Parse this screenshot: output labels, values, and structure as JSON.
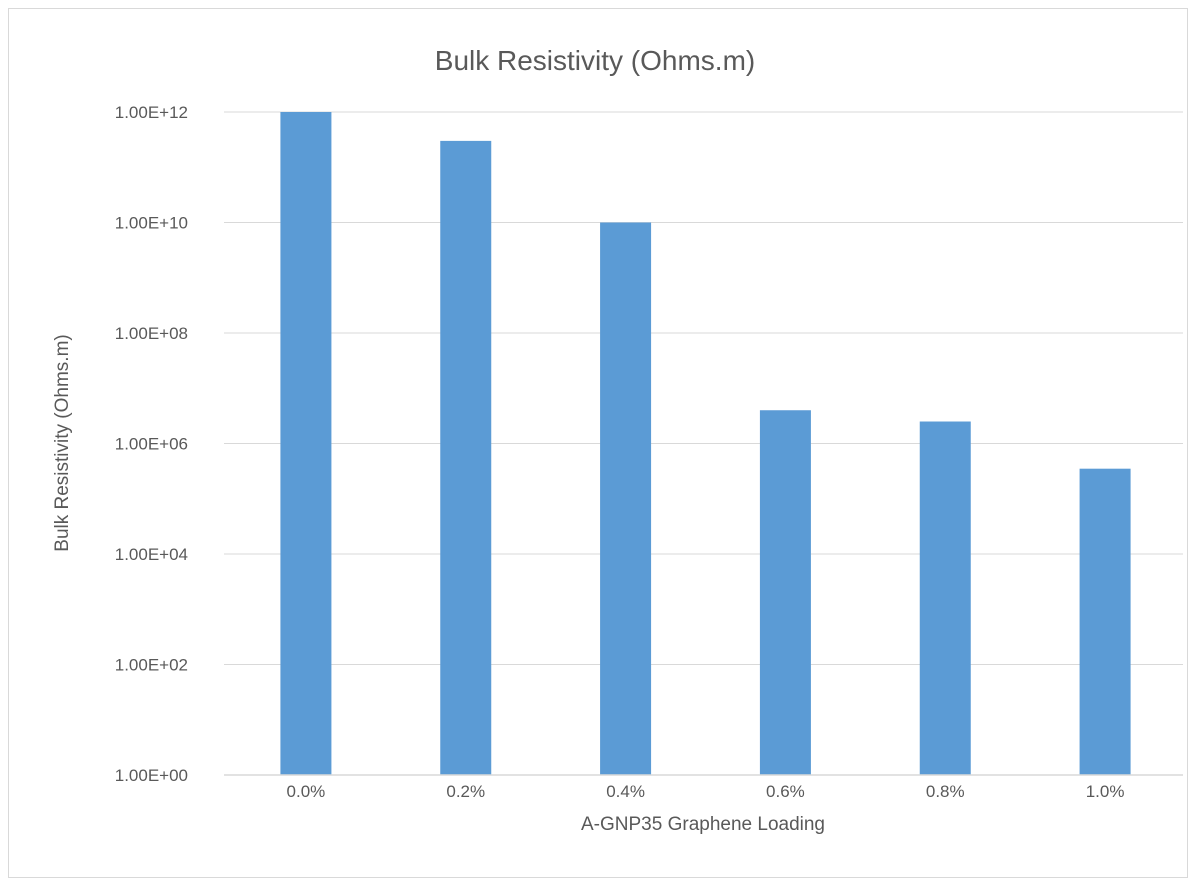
{
  "chart_data": {
    "type": "bar",
    "title": "Bulk Resistivity (Ohms.m)",
    "xlabel": "A-GNP35 Graphene Loading",
    "ylabel": "Bulk Resistivity (Ohms.m)",
    "y_scale": "log",
    "ylim": [
      1,
      1000000000000
    ],
    "y_ticks": [
      1,
      100,
      10000,
      1000000,
      100000000,
      10000000000,
      1000000000000
    ],
    "y_tick_labels": [
      "1.00E+00",
      "1.00E+02",
      "1.00E+04",
      "1.00E+06",
      "1.00E+08",
      "1.00E+10",
      "1.00E+12"
    ],
    "categories": [
      "0.0%",
      "0.2%",
      "0.4%",
      "0.6%",
      "0.8%",
      "1.0%"
    ],
    "values": [
      1000000000000,
      300000000000,
      10000000000,
      4000000,
      2500000,
      350000
    ],
    "grid": true,
    "legend": "none",
    "bar_color": "#5b9bd5",
    "grid_color": "#d9d9d9",
    "text_color": "#595959"
  }
}
